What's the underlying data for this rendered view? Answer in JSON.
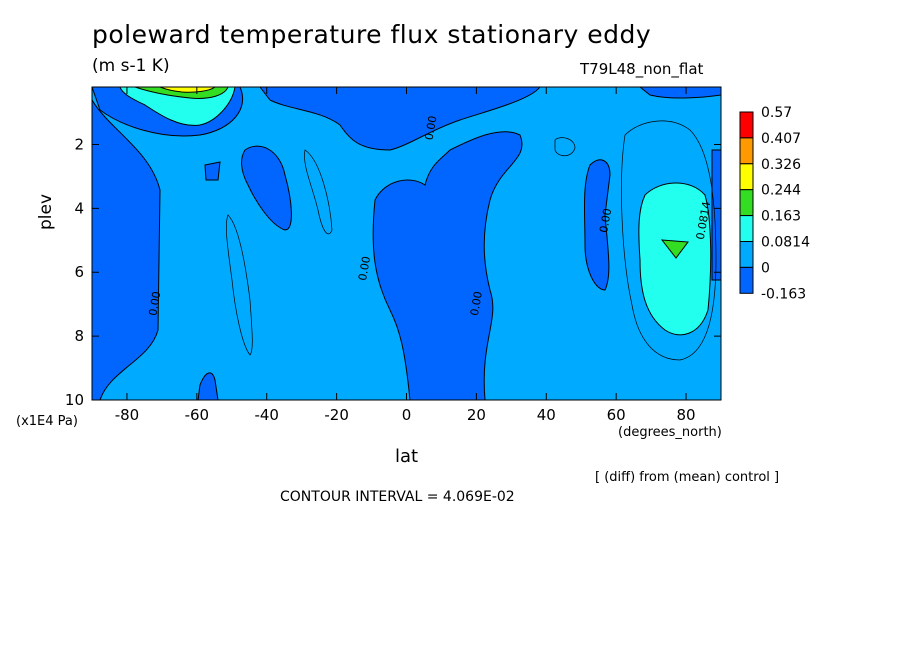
{
  "title": "poleward temperature flux stationary eddy",
  "subtitle": "(m s-1 K)",
  "run_name": "T79L48_non_flat",
  "note": "[ (diff) from (mean) control ]",
  "contour_interval": "CONTOUR INTERVAL = 4.069E-02",
  "chart_data": {
    "type": "heatmap",
    "title": "poleward temperature flux stationary eddy",
    "units": "(m s-1 K)",
    "xlabel": "lat",
    "xunits": "(degrees_north)",
    "ylabel": "plev",
    "yunits": "(x1E4 Pa)",
    "xlim": [
      -90,
      90
    ],
    "ylim": [
      0.2,
      10
    ],
    "y_inverted": true,
    "x_ticks": [
      -80,
      -60,
      -40,
      -20,
      0,
      20,
      40,
      60,
      80
    ],
    "y_ticks": [
      2,
      4,
      6,
      8,
      10
    ],
    "colorbar": {
      "labels": [
        "0.57",
        "0.407",
        "0.326",
        "0.244",
        "0.163",
        "0.0814",
        "0",
        "-0.163"
      ],
      "colors": [
        "#ff0000",
        "#ff9900",
        "#ffff00",
        "#33dd22",
        "#22ffee",
        "#00aaff",
        "#0066ff"
      ]
    },
    "contour_labels": [
      {
        "text": "0.00",
        "lat": 8,
        "plev": 1.5
      },
      {
        "text": "0.00",
        "lat": -11,
        "plev": 5.9
      },
      {
        "text": "0.00",
        "lat": 21,
        "plev": 7.0
      },
      {
        "text": "0.00",
        "lat": -71,
        "plev": 7.0
      },
      {
        "text": "0.00",
        "lat": 58,
        "plev": 4.4
      },
      {
        "text": "0.0814",
        "lat": 86,
        "plev": 4.4
      }
    ]
  }
}
